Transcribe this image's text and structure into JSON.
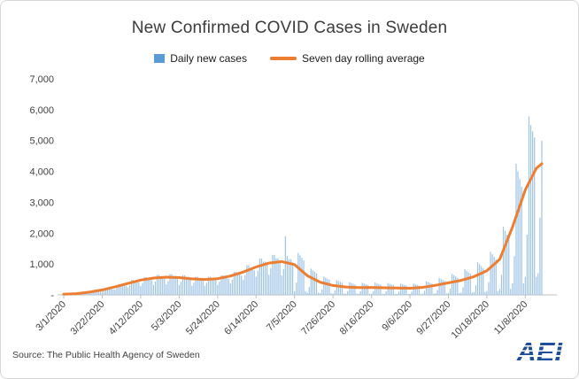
{
  "footer": {
    "source": "Source: The Public Health Agency of Sweden",
    "logo": "AEI"
  },
  "colors": {
    "bar": "#9DC3E6",
    "bar_legend": "#5B9BD5",
    "line": "#ED7D31",
    "axis": "#BFBFBF",
    "text": "#404040",
    "logo_blue": "#1F4E9C"
  },
  "chart_data": {
    "type": "bar",
    "title": "New Confirmed COVID Cases in Sweden",
    "xlabel": "",
    "ylabel": "",
    "ylim": [
      0,
      7000
    ],
    "y_tick_step": 1000,
    "y_zero_label": "-",
    "grid": false,
    "legend_position": "top",
    "x_start_label": "3/1/2020",
    "x_tick_interval_days": 21,
    "x_tick_labels": [
      "3/1/2020",
      "3/22/2020",
      "4/12/2020",
      "5/3/2020",
      "5/24/2020",
      "6/14/2020",
      "7/5/2020",
      "7/26/2020",
      "8/16/2020",
      "9/6/2020",
      "9/27/2020",
      "10/18/2020",
      "11/8/2020"
    ],
    "series": [
      {
        "name": "Daily new cases",
        "type": "bar",
        "color": "#9DC3E6",
        "values": [
          9,
          12,
          18,
          18,
          17,
          17,
          15,
          27,
          36,
          54,
          54,
          50,
          50,
          45,
          60,
          80,
          120,
          120,
          110,
          110,
          100,
          108,
          144,
          216,
          216,
          198,
          198,
          180,
          174,
          232,
          348,
          348,
          319,
          319,
          290,
          240,
          320,
          480,
          480,
          440,
          440,
          400,
          288,
          384,
          576,
          576,
          528,
          528,
          480,
          324,
          432,
          648,
          648,
          594,
          594,
          540,
          336,
          448,
          672,
          672,
          616,
          616,
          560,
          318,
          424,
          636,
          636,
          583,
          583,
          530,
          294,
          392,
          588,
          588,
          539,
          539,
          490,
          294,
          392,
          588,
          588,
          539,
          539,
          490,
          318,
          424,
          636,
          636,
          583,
          583,
          530,
          372,
          496,
          744,
          744,
          682,
          682,
          620,
          480,
          640,
          960,
          960,
          880,
          880,
          800,
          588,
          784,
          1176,
          1176,
          1078,
          1078,
          980,
          648,
          864,
          1296,
          1296,
          1188,
          1188,
          1080,
          630,
          840,
          1900,
          1260,
          1155,
          1155,
          1050,
          120,
          400,
          1360,
          1280,
          1200,
          1120,
          120,
          75,
          250,
          850,
          800,
          750,
          700,
          75,
          53,
          175,
          595,
          560,
          525,
          490,
          53,
          42,
          140,
          476,
          448,
          420,
          392,
          42,
          36,
          120,
          408,
          384,
          360,
          336,
          36,
          35,
          115,
          391,
          368,
          345,
          322,
          35,
          35,
          118,
          400,
          376,
          353,
          329,
          35,
          34,
          113,
          383,
          360,
          338,
          315,
          34,
          32,
          108,
          366,
          344,
          323,
          301,
          32,
          32,
          108,
          366,
          344,
          323,
          301,
          32,
          39,
          130,
          442,
          416,
          390,
          364,
          39,
          48,
          160,
          544,
          512,
          480,
          448,
          48,
          60,
          200,
          680,
          640,
          600,
          560,
          60,
          74,
          245,
          833,
          784,
          735,
          686,
          74,
          93,
          310,
          1054,
          992,
          930,
          868,
          93,
          123,
          410,
          1394,
          1312,
          1230,
          1148,
          123,
          195,
          650,
          2210,
          2080,
          1950,
          1820,
          195,
          375,
          1250,
          4250,
          4000,
          3750,
          3500,
          375,
          585,
          1950,
          5780,
          5500,
          5300,
          5100,
          585,
          700,
          2500,
          5000
        ]
      },
      {
        "name": "Seven day rolling average",
        "type": "line",
        "color": "#ED7D31",
        "points": [
          [
            0,
            20
          ],
          [
            7,
            40
          ],
          [
            14,
            90
          ],
          [
            21,
            160
          ],
          [
            28,
            260
          ],
          [
            35,
            370
          ],
          [
            42,
            480
          ],
          [
            49,
            545
          ],
          [
            56,
            575
          ],
          [
            63,
            560
          ],
          [
            70,
            520
          ],
          [
            77,
            500
          ],
          [
            84,
            525
          ],
          [
            91,
            610
          ],
          [
            98,
            740
          ],
          [
            105,
            905
          ],
          [
            112,
            1030
          ],
          [
            119,
            1080
          ],
          [
            126,
            980
          ],
          [
            133,
            620
          ],
          [
            140,
            410
          ],
          [
            147,
            305
          ],
          [
            154,
            255
          ],
          [
            161,
            235
          ],
          [
            168,
            240
          ],
          [
            175,
            230
          ],
          [
            182,
            220
          ],
          [
            189,
            215
          ],
          [
            196,
            245
          ],
          [
            203,
            310
          ],
          [
            210,
            390
          ],
          [
            217,
            470
          ],
          [
            224,
            590
          ],
          [
            231,
            780
          ],
          [
            238,
            1150
          ],
          [
            245,
            2200
          ],
          [
            252,
            3400
          ],
          [
            258,
            4100
          ],
          [
            261,
            4250
          ]
        ]
      }
    ]
  }
}
